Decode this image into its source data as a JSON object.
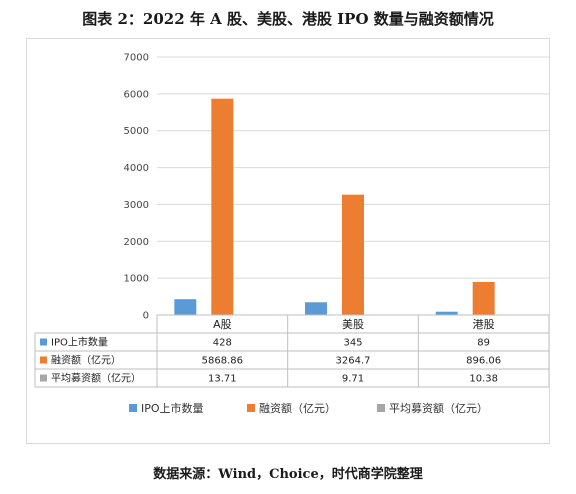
{
  "title": "图表 2：2022 年 A 股、美股、港股 IPO 数量与融资额情况",
  "source": "数据来源：Wind，Choice，时代商学院整理",
  "chart_data": {
    "type": "bar",
    "categories": [
      "A股",
      "美股",
      "港股"
    ],
    "series": [
      {
        "name": "IPO上市数量",
        "color": "#5b9bd5",
        "labels": [
          "428",
          "345",
          "89"
        ],
        "values": [
          428,
          345,
          89
        ]
      },
      {
        "name": "融资额（亿元）",
        "color": "#ed7d31",
        "labels": [
          "5868.86",
          "3264.7",
          "896.06"
        ],
        "values": [
          5868.86,
          3264.7,
          896.06
        ]
      },
      {
        "name": "平均募资额（亿元）",
        "color": "#a5a5a5",
        "labels": [
          "13.71",
          "9.71",
          "10.38"
        ],
        "values": [
          13.71,
          9.71,
          10.38
        ]
      }
    ],
    "yticks": [
      "0",
      "1000",
      "2000",
      "3000",
      "4000",
      "5000",
      "6000",
      "7000"
    ],
    "ylim": [
      0,
      7000
    ],
    "grid": true,
    "legend": "bottom",
    "data_table": true
  }
}
